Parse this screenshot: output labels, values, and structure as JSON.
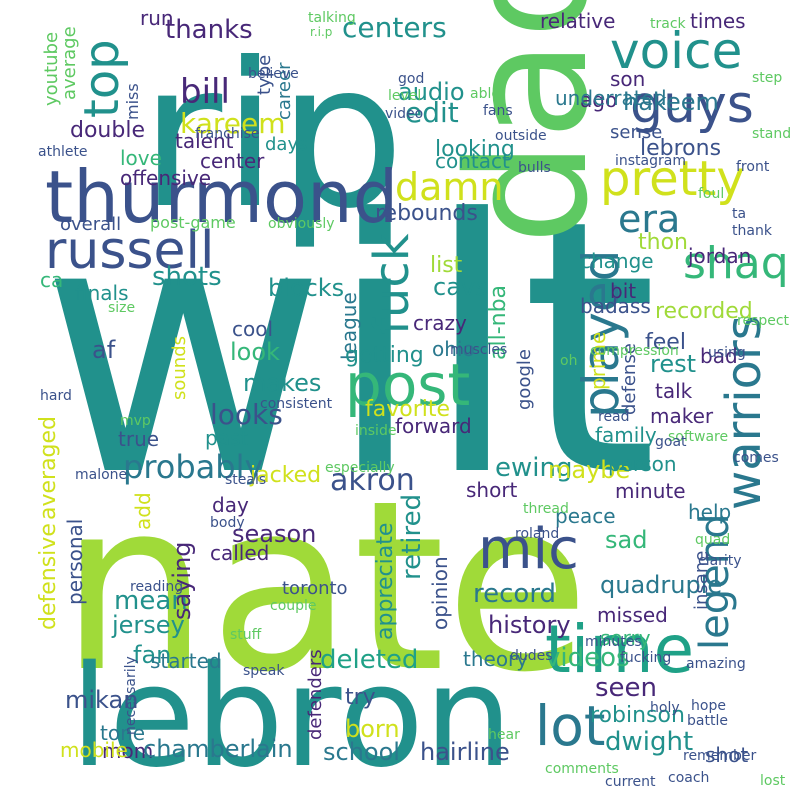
{
  "palette": {
    "background": "#ffffff",
    "colors": [
      "#440154",
      "#3b528b",
      "#21918c",
      "#5ec962",
      "#fde725",
      "#2a788e",
      "#35b779",
      "#a0da39",
      "#482878",
      "#addc30",
      "#1fa187",
      "#d0e11c"
    ]
  },
  "words": [
    {
      "text": "wilt",
      "color": "#21918c"
    },
    {
      "text": "nate",
      "color": "#a0da39"
    },
    {
      "text": "rip",
      "color": "#21918c"
    },
    {
      "text": "lebron",
      "color": "#21918c"
    },
    {
      "text": "dad",
      "color": "#5ec962"
    },
    {
      "text": "thurmond",
      "color": "#3b528b"
    },
    {
      "text": "russell",
      "color": "#3b528b"
    },
    {
      "text": "voice",
      "color": "#21918c"
    },
    {
      "text": "guys",
      "color": "#3b528b"
    },
    {
      "text": "pretty",
      "color": "#d0e11c"
    },
    {
      "text": "time",
      "color": "#1fa187"
    },
    {
      "text": "post",
      "color": "#35b779"
    },
    {
      "text": "mic",
      "color": "#3b528b"
    },
    {
      "text": "lot",
      "color": "#2a788e"
    },
    {
      "text": "fuck",
      "color": "#21918c"
    },
    {
      "text": "played",
      "color": "#2a788e"
    },
    {
      "text": "warriors",
      "color": "#2a788e"
    },
    {
      "text": "legend",
      "color": "#2a788e"
    },
    {
      "text": "shaq",
      "color": "#35b779"
    },
    {
      "text": "era",
      "color": "#2a788e"
    },
    {
      "text": "damn",
      "color": "#d0e11c"
    },
    {
      "text": "top",
      "color": "#21918c"
    },
    {
      "text": "probably",
      "color": "#2a788e"
    },
    {
      "text": "akron",
      "color": "#3b528b"
    },
    {
      "text": "bill",
      "color": "#482878"
    },
    {
      "text": "thanks",
      "color": "#482878"
    },
    {
      "text": "kareem",
      "color": "#d0e11c"
    },
    {
      "text": "centers",
      "color": "#21918c"
    },
    {
      "text": "audio",
      "color": "#21918c"
    },
    {
      "text": "edit",
      "color": "#21918c"
    },
    {
      "text": "hakeem",
      "color": "#2a788e"
    },
    {
      "text": "son",
      "color": "#482878"
    },
    {
      "text": "ago",
      "color": "#482878"
    },
    {
      "text": "underrated",
      "color": "#2a788e"
    },
    {
      "text": "relative",
      "color": "#482878"
    },
    {
      "text": "times",
      "color": "#482878"
    },
    {
      "text": "run",
      "color": "#482878"
    },
    {
      "text": "double",
      "color": "#482878"
    },
    {
      "text": "love",
      "color": "#35b779"
    },
    {
      "text": "talent",
      "color": "#482878"
    },
    {
      "text": "offensive",
      "color": "#482878"
    },
    {
      "text": "center",
      "color": "#482878"
    },
    {
      "text": "looking",
      "color": "#21918c"
    },
    {
      "text": "contact",
      "color": "#21918c"
    },
    {
      "text": "lebrons",
      "color": "#3b528b"
    },
    {
      "text": "rebounds",
      "color": "#3b528b"
    },
    {
      "text": "thon",
      "color": "#a0da39"
    },
    {
      "text": "jordan",
      "color": "#482878"
    },
    {
      "text": "shots",
      "color": "#21918c"
    },
    {
      "text": "blocks",
      "color": "#21918c"
    },
    {
      "text": "finals",
      "color": "#21918c"
    },
    {
      "text": "cavs",
      "color": "#21918c"
    },
    {
      "text": "list",
      "color": "#a0da39"
    },
    {
      "text": "change",
      "color": "#21918c"
    },
    {
      "text": "recorded",
      "color": "#a0da39"
    },
    {
      "text": "bit",
      "color": "#482878"
    },
    {
      "text": "badass",
      "color": "#3b528b"
    },
    {
      "text": "bad",
      "color": "#482878"
    },
    {
      "text": "crazy",
      "color": "#482878"
    },
    {
      "text": "all-nba",
      "color": "#35b779"
    },
    {
      "text": "league",
      "color": "#2a788e"
    },
    {
      "text": "ca",
      "color": "#35b779"
    },
    {
      "text": "af",
      "color": "#3b528b"
    },
    {
      "text": "cool",
      "color": "#3b528b"
    },
    {
      "text": "look",
      "color": "#35b779"
    },
    {
      "text": "makes",
      "color": "#21918c"
    },
    {
      "text": "looks",
      "color": "#3b528b"
    },
    {
      "text": "getting",
      "color": "#21918c"
    },
    {
      "text": "ohio",
      "color": "#2a788e"
    },
    {
      "text": "rest",
      "color": "#21918c"
    },
    {
      "text": "talk",
      "color": "#482878"
    },
    {
      "text": "maker",
      "color": "#482878"
    },
    {
      "text": "feel",
      "color": "#3b528b"
    },
    {
      "text": "favorite",
      "color": "#d0e11c"
    },
    {
      "text": "forward",
      "color": "#482878"
    },
    {
      "text": "prime",
      "color": "#d0e11c"
    },
    {
      "text": "google",
      "color": "#3b528b"
    },
    {
      "text": "defense",
      "color": "#3b528b"
    },
    {
      "text": "family",
      "color": "#21918c"
    },
    {
      "text": "past",
      "color": "#21918c"
    },
    {
      "text": "true",
      "color": "#3b528b"
    },
    {
      "text": "sounds",
      "color": "#d0e11c"
    },
    {
      "text": "averaged",
      "color": "#d0e11c"
    },
    {
      "text": "defensive",
      "color": "#d0e11c"
    },
    {
      "text": "jacked",
      "color": "#d0e11c"
    },
    {
      "text": "ewing",
      "color": "#21918c"
    },
    {
      "text": "maybe",
      "color": "#d0e11c"
    },
    {
      "text": "person",
      "color": "#21918c"
    },
    {
      "text": "minute",
      "color": "#482878"
    },
    {
      "text": "help",
      "color": "#2a788e"
    },
    {
      "text": "peace",
      "color": "#2a788e"
    },
    {
      "text": "short",
      "color": "#482878"
    },
    {
      "text": "day",
      "color": "#482878"
    },
    {
      "text": "season",
      "color": "#482878"
    },
    {
      "text": "called",
      "color": "#482878"
    },
    {
      "text": "mean",
      "color": "#21918c"
    },
    {
      "text": "jersey",
      "color": "#21918c"
    },
    {
      "text": "fan",
      "color": "#21918c"
    },
    {
      "text": "saying",
      "color": "#482878"
    },
    {
      "text": "retired",
      "color": "#21918c"
    },
    {
      "text": "appreciate",
      "color": "#21918c"
    },
    {
      "text": "opinion",
      "color": "#3b528b"
    },
    {
      "text": "record",
      "color": "#2a788e"
    },
    {
      "text": "history",
      "color": "#482878"
    },
    {
      "text": "quadruple",
      "color": "#2a788e"
    },
    {
      "text": "sad",
      "color": "#35b779"
    },
    {
      "text": "missed",
      "color": "#482878"
    },
    {
      "text": "sorry",
      "color": "#35b779"
    },
    {
      "text": "insane",
      "color": "#3b528b"
    },
    {
      "text": "personal",
      "color": "#3b528b"
    },
    {
      "text": "add",
      "color": "#d0e11c"
    },
    {
      "text": "deleted",
      "color": "#1fa187"
    },
    {
      "text": "theory",
      "color": "#2a788e"
    },
    {
      "text": "videos",
      "color": "#35b779"
    },
    {
      "text": "seen",
      "color": "#482878"
    },
    {
      "text": "robinson",
      "color": "#21918c"
    },
    {
      "text": "mikan",
      "color": "#3b528b"
    },
    {
      "text": "tone",
      "color": "#2a788e"
    },
    {
      "text": "started",
      "color": "#2a788e"
    },
    {
      "text": "mom",
      "color": "#482878"
    },
    {
      "text": "mobile",
      "color": "#d0e11c"
    },
    {
      "text": "chamberlain",
      "color": "#2a788e"
    },
    {
      "text": "school",
      "color": "#2a788e"
    },
    {
      "text": "born",
      "color": "#d0e11c"
    },
    {
      "text": "try",
      "color": "#3b528b"
    },
    {
      "text": "defenders",
      "color": "#482878"
    },
    {
      "text": "hairline",
      "color": "#3b528b"
    },
    {
      "text": "dwight",
      "color": "#21918c"
    },
    {
      "text": "shot",
      "color": "#3b528b"
    },
    {
      "text": "toronto",
      "color": "#3b528b"
    },
    {
      "text": "youtube",
      "color": "#5ec962"
    },
    {
      "text": "average",
      "color": "#5ec962"
    },
    {
      "text": "miss",
      "color": "#3b528b"
    },
    {
      "text": "type",
      "color": "#3b528b"
    },
    {
      "text": "career",
      "color": "#2a788e"
    },
    {
      "text": "days",
      "color": "#21918c"
    },
    {
      "text": "overall",
      "color": "#3b528b"
    },
    {
      "text": "post-game",
      "color": "#5ec962"
    },
    {
      "text": "obviously",
      "color": "#5ec962"
    },
    {
      "text": "athlete",
      "color": "#3b528b"
    },
    {
      "text": "franchise",
      "color": "#3b528b"
    },
    {
      "text": "believe",
      "color": "#3b528b"
    },
    {
      "text": "talking",
      "color": "#5ec962"
    },
    {
      "text": "r.i.p",
      "color": "#5ec962"
    },
    {
      "text": "god",
      "color": "#3b528b"
    },
    {
      "text": "able",
      "color": "#5ec962"
    },
    {
      "text": "fans",
      "color": "#3b528b"
    },
    {
      "text": "outside",
      "color": "#3b528b"
    },
    {
      "text": "level",
      "color": "#5ec962"
    },
    {
      "text": "video",
      "color": "#3b528b"
    },
    {
      "text": "track",
      "color": "#5ec962"
    },
    {
      "text": "step",
      "color": "#5ec962"
    },
    {
      "text": "sense",
      "color": "#3b528b"
    },
    {
      "text": "stand",
      "color": "#5ec962"
    },
    {
      "text": "instagram",
      "color": "#3b528b"
    },
    {
      "text": "front",
      "color": "#3b528b"
    },
    {
      "text": "bulls",
      "color": "#3b528b"
    },
    {
      "text": "foul",
      "color": "#5ec962"
    },
    {
      "text": "ta",
      "color": "#3b528b"
    },
    {
      "text": "thank",
      "color": "#3b528b"
    },
    {
      "text": "size",
      "color": "#5ec962"
    },
    {
      "text": "muscles",
      "color": "#3b528b"
    },
    {
      "text": "oh",
      "color": "#5ec962"
    },
    {
      "text": "respect",
      "color": "#5ec962"
    },
    {
      "text": "using",
      "color": "#3b528b"
    },
    {
      "text": "compression",
      "color": "#5ec962"
    },
    {
      "text": "hard",
      "color": "#3b528b"
    },
    {
      "text": "consistent",
      "color": "#3b528b"
    },
    {
      "text": "mvp",
      "color": "#5ec962"
    },
    {
      "text": "inside",
      "color": "#5ec962"
    },
    {
      "text": "read",
      "color": "#3b528b"
    },
    {
      "text": "software",
      "color": "#5ec962"
    },
    {
      "text": "goat",
      "color": "#3b528b"
    },
    {
      "text": "comes",
      "color": "#3b528b"
    },
    {
      "text": "malone",
      "color": "#3b528b"
    },
    {
      "text": "steals",
      "color": "#3b528b"
    },
    {
      "text": "especially",
      "color": "#5ec962"
    },
    {
      "text": "body",
      "color": "#3b528b"
    },
    {
      "text": "thread",
      "color": "#5ec962"
    },
    {
      "text": "roland",
      "color": "#3b528b"
    },
    {
      "text": "quad",
      "color": "#5ec962"
    },
    {
      "text": "clarity",
      "color": "#3b528b"
    },
    {
      "text": "reading",
      "color": "#3b528b"
    },
    {
      "text": "couple",
      "color": "#5ec962"
    },
    {
      "text": "dudes",
      "color": "#3b528b"
    },
    {
      "text": "fucking",
      "color": "#3b528b"
    },
    {
      "text": "amazing",
      "color": "#3b528b"
    },
    {
      "text": "stuff",
      "color": "#5ec962"
    },
    {
      "text": "speak",
      "color": "#3b528b"
    },
    {
      "text": "minutes",
      "color": "#3b528b"
    },
    {
      "text": "holy",
      "color": "#3b528b"
    },
    {
      "text": "hope",
      "color": "#3b528b"
    },
    {
      "text": "battle",
      "color": "#3b528b"
    },
    {
      "text": "remember",
      "color": "#3b528b"
    },
    {
      "text": "necessarily",
      "color": "#3b528b"
    },
    {
      "text": "hear",
      "color": "#5ec962"
    },
    {
      "text": "comments",
      "color": "#5ec962"
    },
    {
      "text": "current",
      "color": "#3b528b"
    },
    {
      "text": "coach",
      "color": "#3b528b"
    },
    {
      "text": "lost",
      "color": "#5ec962"
    }
  ]
}
